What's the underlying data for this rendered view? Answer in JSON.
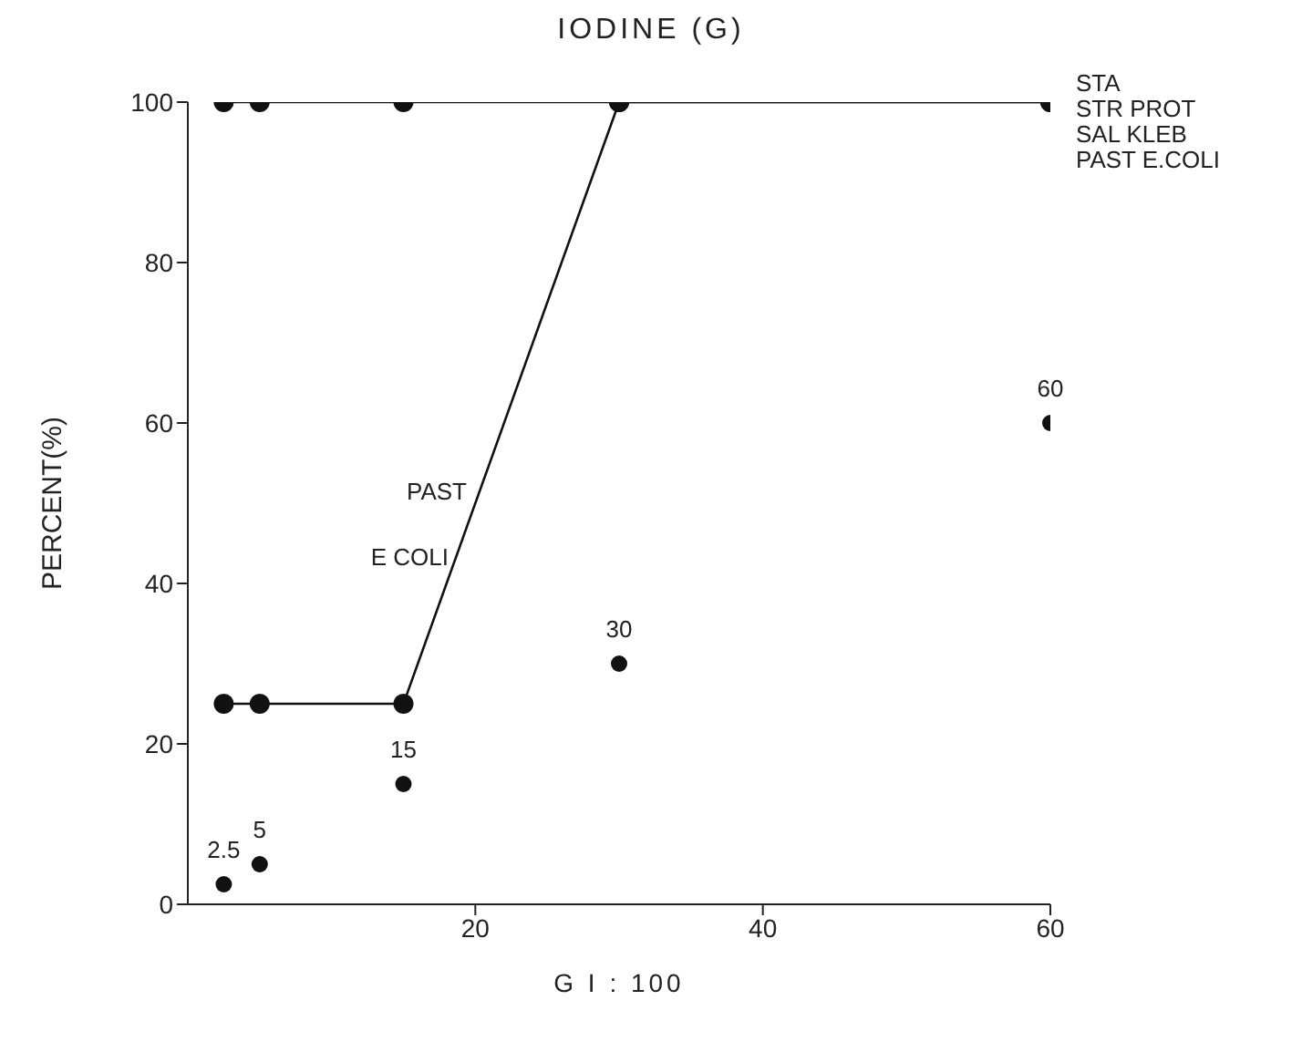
{
  "chart_data": {
    "type": "line",
    "title": "IODINE (G)",
    "xlabel": "G I : 100",
    "ylabel": "PERCENT(%)",
    "x": [
      2.5,
      5,
      15,
      30,
      60
    ],
    "series": [
      {
        "color": "#111111",
        "values": [
          100,
          100,
          100,
          100,
          100
        ]
      },
      {
        "color": "#111111",
        "values": [
          25,
          25,
          25,
          100,
          100
        ]
      },
      {
        "type": "scatter",
        "color": "#111111",
        "values": [
          2.5,
          5,
          15,
          30,
          60
        ],
        "value_labels": [
          "2.5",
          "5",
          "15",
          "30",
          "60"
        ]
      }
    ],
    "annotations": [
      "STA",
      "STR PROT",
      "SAL KLEB",
      "PAST E.COLI",
      "PAST",
      "E COLI"
    ],
    "xlim": [
      0,
      60
    ],
    "xticks": [
      20,
      40,
      60
    ],
    "ylim": [
      0,
      100
    ],
    "yticks": [
      0,
      20,
      40,
      60,
      80,
      100
    ],
    "grid": false,
    "marker": "circle",
    "line_style": "solid"
  }
}
